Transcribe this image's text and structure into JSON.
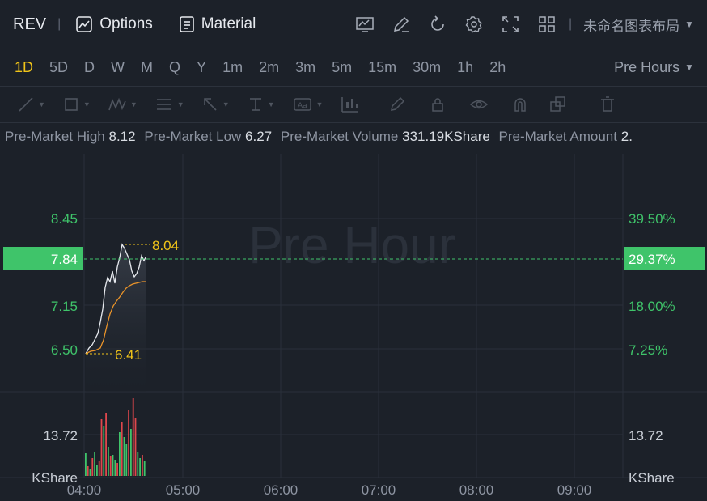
{
  "header": {
    "ticker": "REV",
    "separator": "|",
    "options_label": "Options",
    "material_label": "Material",
    "layout_name": "未命名图表布局"
  },
  "periods": {
    "items": [
      "1D",
      "5D",
      "D",
      "W",
      "M",
      "Q",
      "Y",
      "1m",
      "2m",
      "3m",
      "5m",
      "15m",
      "30m",
      "1h",
      "2h"
    ],
    "active": "1D",
    "session_label": "Pre Hours"
  },
  "premarket_stats": {
    "high_label": "Pre-Market High",
    "high_value": "8.12",
    "low_label": "Pre-Market Low",
    "low_value": "6.27",
    "volume_label": "Pre-Market Volume",
    "volume_value": "331.19KShare",
    "amount_label": "Pre-Market Amount",
    "amount_value": "2."
  },
  "chart": {
    "watermark": "Pre Hour",
    "price_ticks_left": [
      "8.45",
      "7.15",
      "6.50"
    ],
    "pct_ticks_right": [
      "39.50%",
      "18.00%",
      "7.25%"
    ],
    "current_price": "7.84",
    "current_pct": "29.37%",
    "high_marker": "8.04",
    "low_marker": "6.41",
    "volume_tick": "13.72",
    "volume_unit": "KShare",
    "time_ticks": [
      "04:00",
      "05:00",
      "06:00",
      "07:00",
      "08:00",
      "09:00"
    ],
    "colors": {
      "up": "#3fc46a",
      "down": "#e0474c",
      "accent": "#f0c419",
      "avg": "#e8932a"
    }
  }
}
